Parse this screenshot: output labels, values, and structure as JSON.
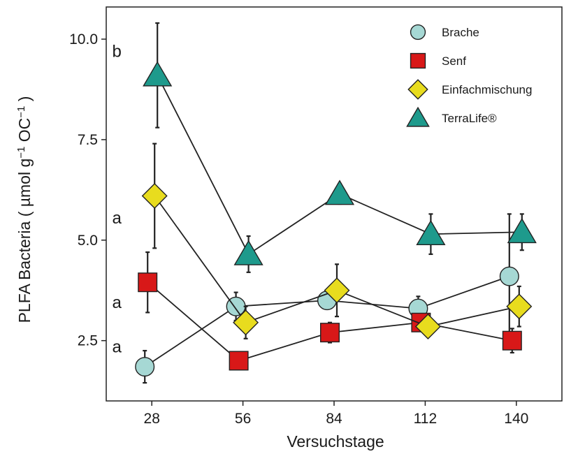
{
  "chart_data": {
    "type": "line",
    "xlabel": "Versuchstage",
    "ylabel_parts": {
      "main": "PLFA Bacteria ( µmol g",
      "sup1": "−1",
      "mid": " OC",
      "sup2": "−1",
      "end": " )"
    },
    "x": [
      28,
      56,
      84,
      112,
      140
    ],
    "x_ticks": [
      "28",
      "56",
      "84",
      "112",
      "140"
    ],
    "y_ticks": [
      "2.5",
      "5.0",
      "7.5",
      "10.0"
    ],
    "y_tick_values": [
      2.5,
      5.0,
      7.5,
      10.0
    ],
    "xlim": [
      14,
      154
    ],
    "ylim": [
      1.0,
      10.8
    ],
    "legend_position": "top-right",
    "grid": false,
    "significance_letters": [
      {
        "label": "b",
        "y": 9.7
      },
      {
        "label": "a",
        "y": 5.55
      },
      {
        "label": "a",
        "y": 3.45
      },
      {
        "label": "a",
        "y": 2.35
      }
    ],
    "series": [
      {
        "name": "Brache",
        "marker": "circle",
        "color": "#a6d8d4",
        "x": [
          28,
          56,
          84,
          112,
          140
        ],
        "values": [
          1.85,
          3.35,
          3.5,
          3.3,
          4.1
        ],
        "err": [
          0.4,
          0.35,
          0.15,
          0.3,
          1.55
        ]
      },
      {
        "name": "Senf",
        "marker": "square",
        "color": "#d81818",
        "x": [
          28,
          56,
          84,
          112,
          140
        ],
        "values": [
          3.95,
          2.0,
          2.7,
          2.95,
          2.5
        ],
        "err": [
          0.75,
          0.15,
          0.25,
          0.2,
          0.3
        ]
      },
      {
        "name": "Einfachmischung",
        "marker": "diamond",
        "color": "#e8dc1e",
        "x": [
          28,
          56,
          84,
          112,
          140
        ],
        "values": [
          6.1,
          2.95,
          3.75,
          2.85,
          3.35
        ],
        "err": [
          1.3,
          0.4,
          0.65,
          0.2,
          0.5
        ]
      },
      {
        "name": "TerraLife®",
        "marker": "triangle",
        "color": "#1e9a8c",
        "x": [
          28,
          56,
          84,
          112,
          140
        ],
        "values": [
          9.1,
          4.65,
          6.15,
          5.15,
          5.2
        ],
        "err": [
          1.3,
          0.45,
          0.25,
          0.5,
          0.45
        ]
      }
    ]
  }
}
